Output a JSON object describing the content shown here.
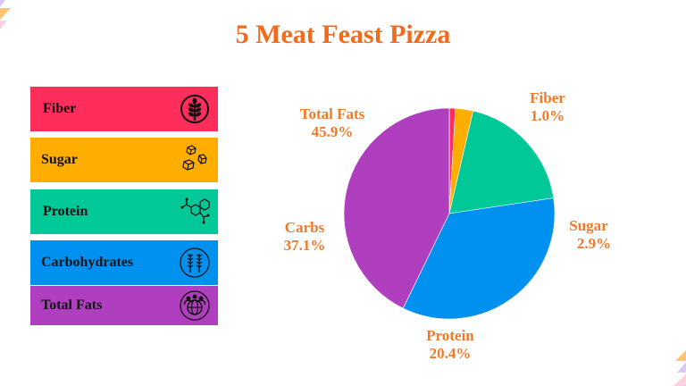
{
  "title": "5 Meat Feast Pizza",
  "legend": [
    {
      "label": "Fiber",
      "color": "#FF2D5C",
      "icon": "wheat-circle-icon"
    },
    {
      "label": "Sugar",
      "color": "#FFAE00",
      "icon": "sugar-cubes-icon"
    },
    {
      "label": "Protein",
      "color": "#00C896",
      "icon": "molecule-icon"
    },
    {
      "label": "Carbohydrates",
      "color": "#0091F0",
      "icon": "grain-circle-icon"
    },
    {
      "label": "Total Fats",
      "color": "#B03FC0",
      "icon": "globe-people-icon"
    }
  ],
  "pie_labels": {
    "fiber": {
      "name": "Fiber",
      "pct": "1.0%"
    },
    "sugar": {
      "name": "Sugar",
      "pct": "2.9%"
    },
    "protein": {
      "name": "Protein",
      "pct": "20.4%"
    },
    "carbs": {
      "name": "Carbs",
      "pct": "37.1%"
    },
    "fats": {
      "name": "Total Fats",
      "pct": "45.9%"
    }
  },
  "chart_data": {
    "type": "pie",
    "title": "5 Meat Feast Pizza",
    "categories": [
      "Fiber",
      "Sugar",
      "Protein",
      "Carbs",
      "Total Fats"
    ],
    "values": [
      1.0,
      2.9,
      20.4,
      37.1,
      45.9
    ],
    "colors": [
      "#FF2D5C",
      "#FFAE00",
      "#00C896",
      "#0091F0",
      "#B03FC0"
    ],
    "legend_position": "left",
    "start_angle": "12 o'clock, clockwise"
  }
}
